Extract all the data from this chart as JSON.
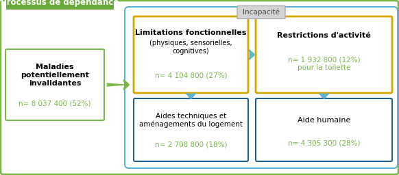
{
  "title_box": {
    "text": "Processus de dépendance",
    "bg_color": "#6aaa3a",
    "text_color": "#ffffff",
    "font_size": 8.5
  },
  "incapacite_label": {
    "text": "Incapacité",
    "bg_color": "#d4d4d4",
    "text_color": "#444444",
    "font_size": 7.5
  },
  "box_maladies": {
    "title": "Maladies\npotentiellement\ninvalidantes",
    "value": "n= 8 037 400 (52%)",
    "border_color": "#7ab648",
    "value_color": "#7ab648",
    "title_fontsize": 8,
    "value_fontsize": 7.5
  },
  "box_limitations": {
    "title": "Limitations fonctionnelles",
    "subtitle": "(physiques, sensorielles,\ncognitives)",
    "value": "n= 4 104 800 (27%)",
    "border_color": "#d4a800",
    "value_color": "#7ab648",
    "title_fontsize": 8,
    "value_fontsize": 7.5
  },
  "box_restrictions": {
    "title": "Restrictions d'activité",
    "value": "n= 1 932 800 (12%)\npour la toilette",
    "border_color": "#d4a800",
    "value_color": "#7ab648",
    "title_fontsize": 8,
    "value_fontsize": 7.5
  },
  "box_aides": {
    "title": "Aides techniques et\naménagements du logement",
    "value": "n= 2 708 800 (18%)",
    "border_color": "#1f618d",
    "value_color": "#7ab648",
    "title_fontsize": 7.5,
    "value_fontsize": 7.5
  },
  "box_aide_humaine": {
    "title": "Aide humaine",
    "value": "n= 4 305 300 (28%)",
    "border_color": "#1f618d",
    "value_color": "#7ab648",
    "title_fontsize": 8,
    "value_fontsize": 7.5
  },
  "outer_box_color": "#5ab4d6",
  "arrow_color": "#5ab4d6",
  "maladies_arrow_color": "#7ab648",
  "bg_color": "#ffffff",
  "outer_border_color": "#7ab648"
}
